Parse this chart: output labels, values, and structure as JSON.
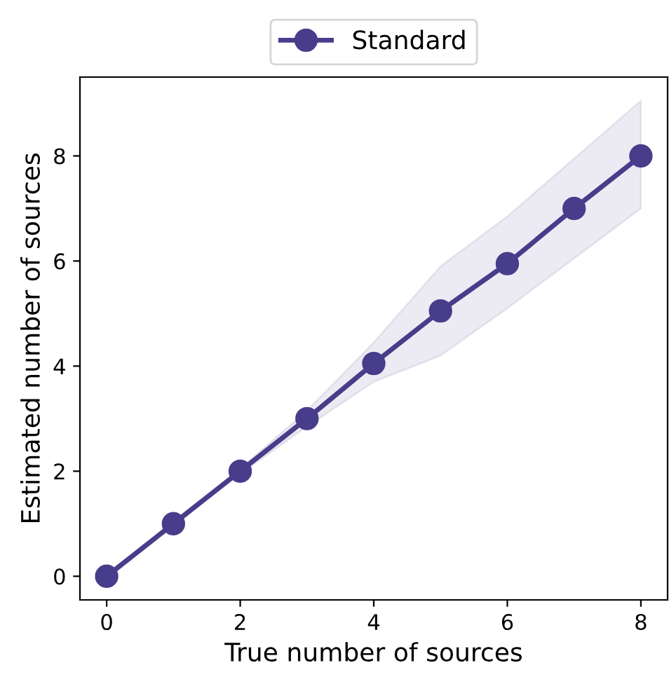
{
  "chart_data": {
    "type": "line",
    "xlabel": "True number of sources",
    "ylabel": "Estimated number of sources",
    "x": [
      0,
      1,
      2,
      3,
      4,
      5,
      6,
      7,
      8
    ],
    "series": [
      {
        "name": "Standard",
        "color": "#483d8b",
        "values": [
          0,
          1,
          2,
          3,
          4.05,
          5.05,
          5.95,
          7,
          8
        ],
        "lower": [
          0,
          1,
          1.95,
          2.85,
          3.7,
          4.2,
          5.1,
          6.05,
          7.0
        ],
        "upper": [
          0,
          1,
          2.05,
          3.15,
          4.45,
          5.9,
          6.85,
          7.95,
          9.05
        ]
      }
    ],
    "xlim": [
      -0.4,
      8.4
    ],
    "ylim": [
      -0.45,
      9.5
    ],
    "xticks": [
      0,
      2,
      4,
      6,
      8
    ],
    "yticks": [
      0,
      2,
      4,
      6,
      8
    ],
    "marker": "circle",
    "line_style": "solid",
    "legend": "top",
    "grid": false
  }
}
